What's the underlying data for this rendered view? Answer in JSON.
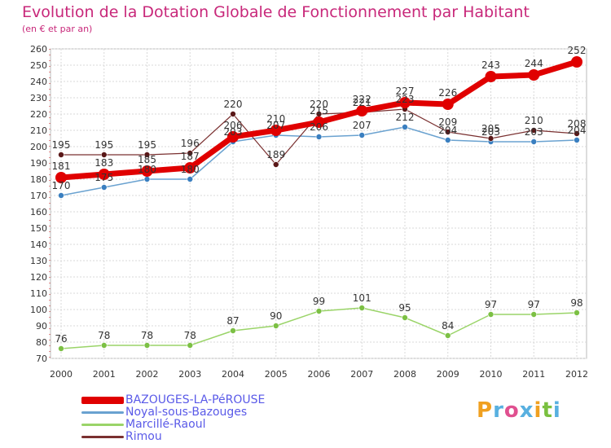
{
  "header": {
    "title": "Evolution de la Dotation Globale de Fonctionnement par Habitant",
    "subtitle": "(en € et par an)"
  },
  "brand": {
    "logo_text": "Proxiti",
    "letter_colors": [
      "#f0a020",
      "#58b0e0",
      "#e05090",
      "#58b0e0",
      "#f0a020",
      "#7ac040",
      "#58b0e0"
    ]
  },
  "chart_data": {
    "type": "line",
    "title": "Evolution de la Dotation Globale de Fonctionnement par Habitant",
    "subtitle": "(en € et par an)",
    "xlabel": "",
    "ylabel": "",
    "categories": [
      "2000",
      "2001",
      "2002",
      "2003",
      "2004",
      "2005",
      "2006",
      "2007",
      "2008",
      "2009",
      "2010",
      "2011",
      "2012"
    ],
    "ylim": [
      70,
      260
    ],
    "ytick_step": 10,
    "grid": true,
    "legend_position": "bottom-left",
    "series": [
      {
        "name": "BAZOUGES-LA-PéROUSE",
        "color": "#e00000",
        "marker": "#e00000",
        "values": [
          181,
          183,
          185,
          187,
          206,
          210,
          215,
          222,
          227,
          226,
          243,
          244,
          252
        ]
      },
      {
        "name": "Noyal-sous-Bazouges",
        "color": "#6aa2d0",
        "marker": "#3a7fc0",
        "values": [
          170,
          175,
          180,
          180,
          203,
          207,
          206,
          207,
          212,
          204,
          203,
          203,
          204
        ]
      },
      {
        "name": "Marcillé-Raoul",
        "color": "#9ad468",
        "marker": "#7cc044",
        "values": [
          76,
          78,
          78,
          78,
          87,
          90,
          99,
          101,
          95,
          84,
          97,
          97,
          98
        ]
      },
      {
        "name": "Rimou",
        "color": "#7a3030",
        "marker": "#5a1818",
        "values": [
          195,
          195,
          195,
          196,
          220,
          189,
          220,
          221,
          223,
          209,
          205,
          210,
          208
        ]
      }
    ]
  }
}
